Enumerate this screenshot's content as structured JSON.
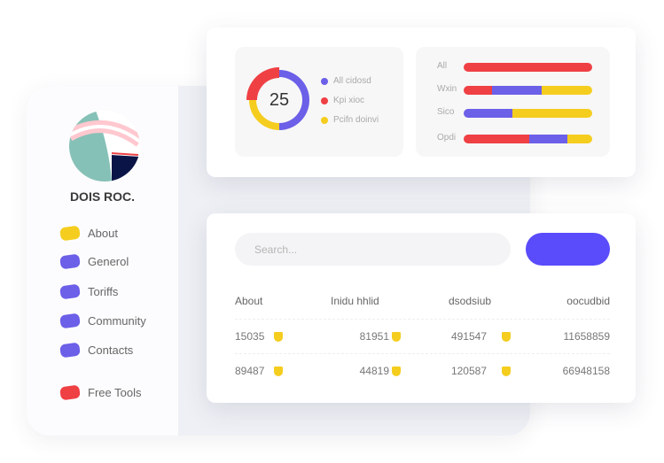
{
  "sidebar": {
    "brand": "DOIS ROC.",
    "items": [
      {
        "label": "About",
        "color": "#f5cd1e"
      },
      {
        "label": "Generol",
        "color": "#6c5fe8"
      },
      {
        "label": "Toriffs",
        "color": "#6c5fe8"
      },
      {
        "label": "Community",
        "color": "#6c5fe8"
      },
      {
        "label": "Contacts",
        "color": "#6c5fe8"
      },
      {
        "label": "Free Tools",
        "color": "#ef4044"
      }
    ]
  },
  "donut": {
    "center_value": "25",
    "segments": [
      {
        "label": "All cidosd",
        "value": 50,
        "color": "#6c5fe8"
      },
      {
        "label": "Pcifn doinvi",
        "value": 25,
        "color": "#f5cd1e"
      },
      {
        "label": "Kpi xioc",
        "value": 25,
        "color": "#ef4044"
      }
    ],
    "legend": [
      {
        "label": "All cidosd",
        "color": "#6c5fe8"
      },
      {
        "label": "Kpi xioc",
        "color": "#ef4044"
      },
      {
        "label": "Pcifn doinvi",
        "color": "#f5cd1e"
      }
    ]
  },
  "bars": [
    {
      "label": "All",
      "parts": [
        {
          "value": 100,
          "color": "#ef4044"
        }
      ]
    },
    {
      "label": "Wxin",
      "parts": [
        {
          "value": 22,
          "color": "#ef4044"
        },
        {
          "value": 39,
          "color": "#6c5fe8"
        },
        {
          "value": 39,
          "color": "#f5cd1e"
        }
      ]
    },
    {
      "label": "Sico",
      "parts": [
        {
          "value": 38,
          "color": "#6c5fe8"
        },
        {
          "value": 62,
          "color": "#f5cd1e"
        }
      ]
    },
    {
      "label": "Opdi",
      "parts": [
        {
          "value": 51,
          "color": "#ef4044"
        },
        {
          "value": 30,
          "color": "#6c5fe8"
        },
        {
          "value": 19,
          "color": "#f5cd1e"
        }
      ]
    }
  ],
  "search": {
    "placeholder": "Search..."
  },
  "table": {
    "headers": [
      "About",
      "Inidu hhlid",
      "dsodsiub",
      "oocudbid"
    ],
    "rows": [
      [
        "15035",
        "81951",
        "491547",
        "11658859"
      ],
      [
        "89487",
        "44819",
        "120587",
        "66948158"
      ]
    ]
  }
}
